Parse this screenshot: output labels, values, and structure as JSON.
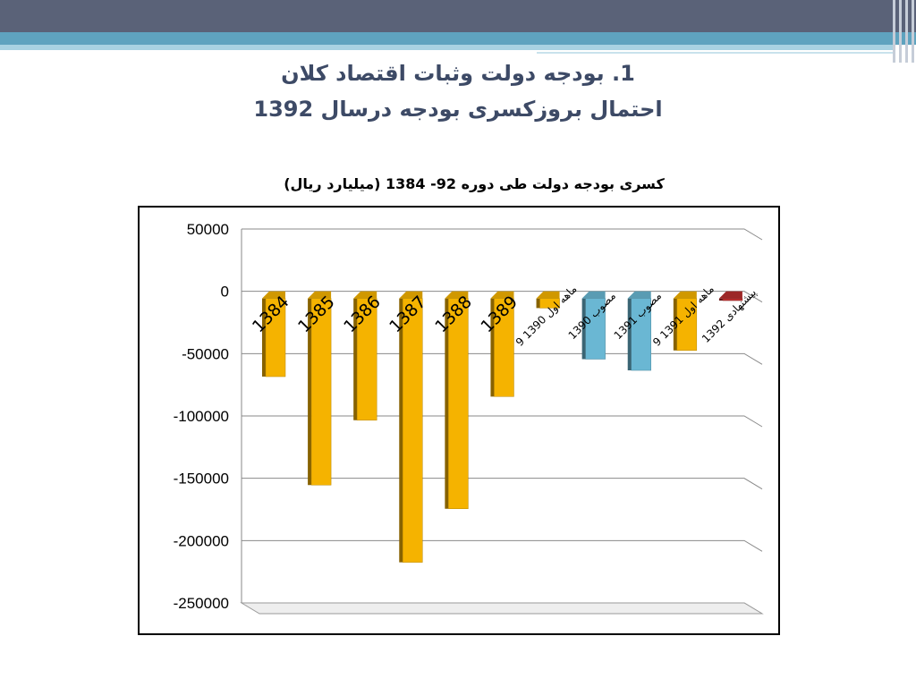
{
  "slide": {
    "title_line1": "1. بودجه دولت وثبات اقتصاد کلان",
    "title_line2": "احتمال بروزکسری بودجه درسال 1392"
  },
  "colors": {
    "bar_main": "#f5b300",
    "bar_approved": "#6ab7d3",
    "bar_proposed": "#b82e2e",
    "header_bar": "#5a6278",
    "accent": "#5fa3bf"
  },
  "chart_data": {
    "type": "bar",
    "title": "کسری بودجه دولت طی دوره 92- 1384 (میلیارد ریال)",
    "xlabel": "",
    "ylabel": "",
    "ylim": [
      -250000,
      50000
    ],
    "yticks": [
      "50000",
      "0",
      "-50000",
      "-100000",
      "-150000",
      "-200000",
      "-250000"
    ],
    "grid": true,
    "categories": [
      "1384",
      "1385",
      "1386",
      "1387",
      "1388",
      "1389",
      "9 ماهه اول 1390",
      "مصوب 1390",
      "مصوب 1391",
      "9 ماهه اول 1391",
      "پیشنهادی 1392"
    ],
    "values": [
      -67000,
      -154000,
      -102000,
      -216000,
      -173000,
      -83000,
      -12000,
      -53000,
      -62000,
      -46000,
      -6000
    ],
    "bar_colors": [
      "#f5b300",
      "#f5b300",
      "#f5b300",
      "#f5b300",
      "#f5b300",
      "#f5b300",
      "#f5b300",
      "#6ab7d3",
      "#6ab7d3",
      "#f5b300",
      "#b82e2e"
    ]
  }
}
